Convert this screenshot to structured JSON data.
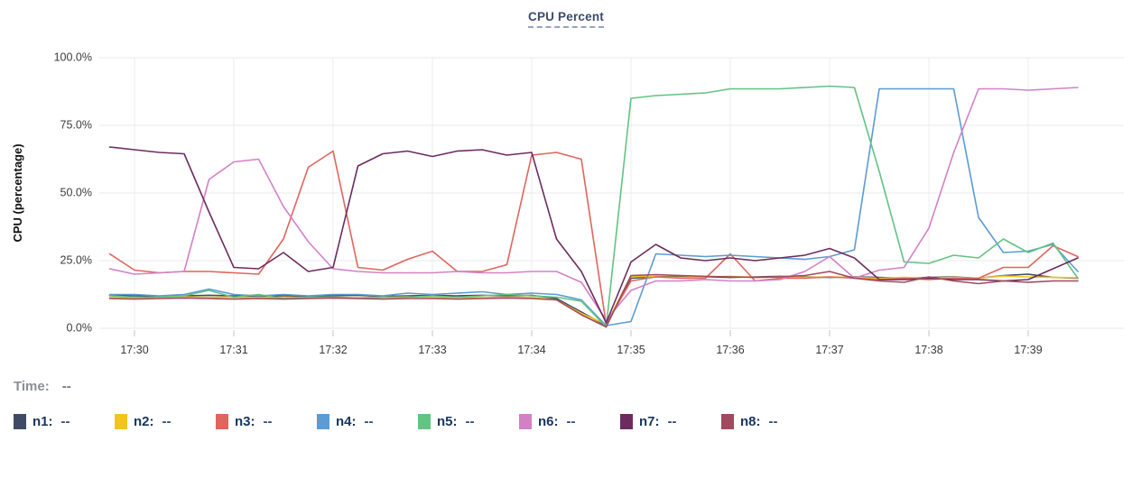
{
  "title": "CPU Percent",
  "time_row": {
    "label": "Time:",
    "value": "--"
  },
  "legend": [
    {
      "name_label": "n1:",
      "value": "--",
      "color": "#3f4b66"
    },
    {
      "name_label": "n2:",
      "value": "--",
      "color": "#f3c41d"
    },
    {
      "name_label": "n3:",
      "value": "--",
      "color": "#e0655c"
    },
    {
      "name_label": "n4:",
      "value": "--",
      "color": "#5c9bd3"
    },
    {
      "name_label": "n5:",
      "value": "--",
      "color": "#62c383"
    },
    {
      "name_label": "n6:",
      "value": "--",
      "color": "#d381c7"
    },
    {
      "name_label": "n7:",
      "value": "--",
      "color": "#6d2c60"
    },
    {
      "name_label": "n8:",
      "value": "--",
      "color": "#a04a5e"
    }
  ],
  "chart_data": {
    "type": "line",
    "title": "CPU Percent",
    "xlabel": "",
    "ylabel": "CPU (percentage)",
    "ylim": [
      0,
      100
    ],
    "grid": true,
    "legend_position": "bottom",
    "y_ticks": {
      "values": [
        0,
        25,
        50,
        75,
        100
      ],
      "labels": [
        "0.0%",
        "25.0%",
        "50.0%",
        "75.0%",
        "100.0%"
      ]
    },
    "x_ticks": {
      "values": [
        30,
        31,
        32,
        33,
        34,
        35,
        36,
        37,
        38,
        39
      ],
      "labels": [
        "17:30",
        "17:31",
        "17:32",
        "17:33",
        "17:34",
        "17:35",
        "17:36",
        "17:37",
        "17:38",
        "17:39"
      ]
    },
    "x_unit": "minutes after 17:00",
    "x": [
      29.75,
      30.0,
      30.25,
      30.5,
      30.75,
      31.0,
      31.25,
      31.5,
      31.75,
      32.0,
      32.25,
      32.5,
      32.75,
      33.0,
      33.25,
      33.5,
      33.75,
      34.0,
      34.25,
      34.5,
      34.75,
      35.0,
      35.25,
      35.5,
      35.75,
      36.0,
      36.25,
      36.5,
      36.75,
      37.0,
      37.25,
      37.5,
      37.75,
      38.0,
      38.25,
      38.5,
      38.75,
      39.0,
      39.25,
      39.5
    ],
    "series": [
      {
        "name": "n1",
        "color": "#3f4b66",
        "values": [
          12.2,
          12.0,
          11.8,
          12.0,
          12.2,
          12.0,
          11.8,
          12.0,
          11.8,
          12.0,
          12.2,
          11.8,
          12.0,
          12.2,
          12.0,
          12.2,
          12.0,
          12.2,
          11.0,
          6.0,
          1.0,
          18.5,
          19.0,
          19.2,
          19.0,
          18.8,
          19.0,
          19.2,
          19.0,
          18.8,
          19.0,
          18.8,
          18.5,
          18.8,
          19.0,
          18.5,
          19.5,
          20.0,
          18.8,
          18.5
        ]
      },
      {
        "name": "n2",
        "color": "#f3c41d",
        "values": [
          11.5,
          11.3,
          11.5,
          11.6,
          11.4,
          11.5,
          11.3,
          11.5,
          11.4,
          11.5,
          11.3,
          11.5,
          11.6,
          11.4,
          11.5,
          11.3,
          11.5,
          11.4,
          10.5,
          5.5,
          1.5,
          19.3,
          19.0,
          18.8,
          19.0,
          19.2,
          18.8,
          19.0,
          18.8,
          19.0,
          18.8,
          18.5,
          18.8,
          18.5,
          18.8,
          18.5,
          19.3,
          19.0,
          18.8,
          18.7
        ]
      },
      {
        "name": "n3",
        "color": "#e0655c",
        "values": [
          27.5,
          21.5,
          20.5,
          21.0,
          21.0,
          20.5,
          20.0,
          33.0,
          59.5,
          65.5,
          22.5,
          21.5,
          25.5,
          28.5,
          21.0,
          21.0,
          23.5,
          64.0,
          65.0,
          62.5,
          1.5,
          17.5,
          19.0,
          18.5,
          18.5,
          27.5,
          17.5,
          18.5,
          18.5,
          19.0,
          18.5,
          18.0,
          18.5,
          18.0,
          18.5,
          18.5,
          22.5,
          22.5,
          30.5,
          26.5
        ]
      },
      {
        "name": "n4",
        "color": "#5c9bd3",
        "values": [
          12.5,
          12.5,
          12.0,
          12.5,
          14.5,
          12.5,
          12.0,
          12.5,
          12.0,
          12.5,
          12.5,
          12.0,
          13.0,
          12.5,
          13.0,
          13.5,
          12.5,
          13.0,
          12.5,
          10.5,
          1.0,
          2.5,
          27.5,
          27.0,
          26.5,
          27.0,
          26.5,
          26.0,
          25.5,
          26.5,
          29.0,
          88.5,
          88.5,
          88.5,
          88.5,
          41.0,
          28.0,
          28.5,
          31.0,
          21.0
        ]
      },
      {
        "name": "n5",
        "color": "#62c383",
        "values": [
          12.0,
          11.5,
          11.5,
          12.0,
          14.0,
          11.5,
          12.5,
          11.0,
          11.5,
          11.5,
          11.0,
          11.5,
          11.5,
          12.0,
          11.5,
          12.0,
          12.5,
          12.0,
          11.5,
          10.0,
          0.5,
          85.0,
          86.0,
          86.5,
          87.0,
          88.5,
          88.5,
          88.5,
          89.0,
          89.5,
          89.0,
          58.0,
          24.5,
          24.0,
          27.0,
          26.0,
          33.0,
          28.0,
          31.5,
          18.5
        ]
      },
      {
        "name": "n6",
        "color": "#d381c7",
        "values": [
          22.0,
          20.0,
          20.5,
          21.0,
          55.0,
          61.5,
          62.5,
          45.0,
          32.0,
          22.0,
          21.0,
          20.5,
          20.5,
          20.5,
          21.0,
          20.5,
          20.5,
          21.0,
          21.0,
          17.0,
          3.0,
          14.0,
          17.5,
          17.5,
          18.0,
          17.5,
          17.5,
          18.0,
          21.0,
          26.5,
          18.5,
          21.5,
          22.5,
          37.0,
          65.0,
          88.5,
          88.5,
          88.0,
          88.5,
          89.0
        ]
      },
      {
        "name": "n7",
        "color": "#6d2c60",
        "values": [
          67.0,
          66.0,
          65.0,
          64.5,
          43.0,
          22.5,
          22.0,
          28.0,
          21.0,
          22.5,
          60.0,
          64.5,
          65.5,
          63.5,
          65.5,
          66.0,
          64.0,
          65.0,
          33.0,
          21.0,
          2.0,
          24.5,
          31.0,
          26.0,
          25.0,
          26.0,
          25.0,
          26.0,
          27.0,
          29.5,
          26.0,
          18.0,
          18.0,
          18.5,
          18.0,
          18.0,
          17.5,
          18.0,
          22.0,
          26.0
        ]
      },
      {
        "name": "n8",
        "color": "#a04a5e",
        "values": [
          11.0,
          10.8,
          11.0,
          11.2,
          11.0,
          10.8,
          11.0,
          10.8,
          11.0,
          11.2,
          11.0,
          10.8,
          11.0,
          11.0,
          10.8,
          11.0,
          11.2,
          11.0,
          10.5,
          5.0,
          0.5,
          19.5,
          19.8,
          19.5,
          19.2,
          19.0,
          18.8,
          19.0,
          19.5,
          21.0,
          18.5,
          17.5,
          17.0,
          19.0,
          17.5,
          16.5,
          17.5,
          17.0,
          17.5,
          17.5
        ]
      }
    ]
  }
}
